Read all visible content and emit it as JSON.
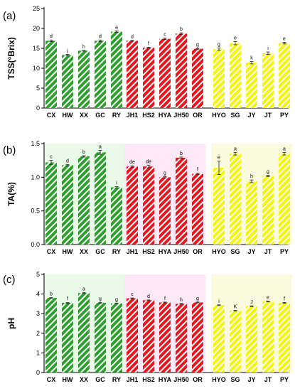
{
  "chart_data": [
    {
      "type": "bar",
      "panel": "(a)",
      "ylabel": "TSS(°Brix)",
      "ylim": [
        0,
        25
      ],
      "yticks": [
        0,
        5,
        10,
        15,
        20,
        25
      ],
      "categories": [
        "CX",
        "HW",
        "XX",
        "GC",
        "RY",
        "JH1",
        "HS2",
        "HYA",
        "JH50",
        "OR",
        "HYO",
        "SG",
        "JY",
        "JT",
        "PY"
      ],
      "groups": [
        {
          "color": "#2ca02c",
          "categories": [
            "CX",
            "HW",
            "XX",
            "GC",
            "RY"
          ]
        },
        {
          "color": "#e8161c",
          "categories": [
            "JH1",
            "HS2",
            "HYA",
            "JH50",
            "OR"
          ]
        },
        {
          "color": "#f5f50c",
          "categories": [
            "HYO",
            "SG",
            "JY",
            "JT",
            "PY"
          ]
        }
      ],
      "values": [
        16.9,
        13.3,
        14.4,
        16.9,
        19.2,
        16.9,
        15.2,
        17.4,
        18.7,
        14.9,
        14.8,
        16.3,
        11.4,
        13.8,
        16.3
      ],
      "errors": [
        0.2,
        0.2,
        0.1,
        0.2,
        0.2,
        0.1,
        0.1,
        0.2,
        0.2,
        0.1,
        0.3,
        0.4,
        0.3,
        0.3,
        0.2
      ],
      "letters": [
        "d",
        "j",
        "h",
        "d",
        "a",
        "d",
        "f",
        "c",
        "b",
        "g",
        "g",
        "e",
        "k",
        "i",
        "e"
      ]
    },
    {
      "type": "bar",
      "panel": "(b)",
      "ylabel": "TA(%)",
      "ylim": [
        0,
        1.5
      ],
      "yticks": [
        "0.0",
        "0.5",
        "1.0",
        "1.5"
      ],
      "categories": [
        "CX",
        "HW",
        "XX",
        "GC",
        "RY",
        "JH1",
        "HS2",
        "HYA",
        "JH50",
        "OR",
        "HYO",
        "SG",
        "JY",
        "JT",
        "PY"
      ],
      "groups": [
        {
          "color": "#2ca02c",
          "categories": [
            "CX",
            "HW",
            "XX",
            "GC",
            "RY"
          ]
        },
        {
          "color": "#e8161c",
          "categories": [
            "JH1",
            "HS2",
            "HYA",
            "JH50",
            "OR"
          ]
        },
        {
          "color": "#f5f50c",
          "categories": [
            "HYO",
            "SG",
            "JY",
            "JT",
            "PY"
          ]
        }
      ],
      "values": [
        1.22,
        1.18,
        1.31,
        1.37,
        0.85,
        1.16,
        1.16,
        1.0,
        1.29,
        1.05,
        1.14,
        1.35,
        0.94,
        1.02,
        1.35
      ],
      "errors": [
        0.03,
        0.01,
        0.01,
        0.03,
        0.01,
        0.01,
        0.02,
        0.01,
        0.01,
        0.01,
        0.1,
        0.02,
        0.02,
        0.01,
        0.02
      ],
      "letters": [
        "c",
        "d",
        "b",
        "a",
        "i",
        "de",
        "de",
        "g",
        "b",
        "f",
        "e",
        "a",
        "h",
        "g",
        "a"
      ]
    },
    {
      "type": "bar",
      "panel": "(c)",
      "ylabel": "pH",
      "ylim": [
        0,
        5
      ],
      "yticks": [
        0,
        1,
        2,
        3,
        4,
        5
      ],
      "categories": [
        "CX",
        "HW",
        "XX",
        "GC",
        "RY",
        "JH1",
        "HS2",
        "HYA",
        "JH50",
        "OR",
        "HYO",
        "SG",
        "JY",
        "JT",
        "PY"
      ],
      "groups": [
        {
          "color": "#2ca02c",
          "categories": [
            "CX",
            "HW",
            "XX",
            "GC",
            "RY"
          ]
        },
        {
          "color": "#e8161c",
          "categories": [
            "JH1",
            "HS2",
            "HYA",
            "JH50",
            "OR"
          ]
        },
        {
          "color": "#f5f50c",
          "categories": [
            "HYO",
            "SG",
            "JY",
            "JT",
            "PY"
          ]
        }
      ],
      "values": [
        3.8,
        3.55,
        4.05,
        3.55,
        3.52,
        3.78,
        3.68,
        3.57,
        3.5,
        3.57,
        3.43,
        3.15,
        3.38,
        3.62,
        3.55
      ],
      "errors": [
        0.02,
        0.02,
        0.02,
        0.02,
        0.02,
        0.02,
        0.02,
        0.02,
        0.02,
        0.02,
        0.02,
        0.02,
        0.02,
        0.02,
        0.02
      ],
      "letters": [
        "b",
        "f",
        "a",
        "g",
        "g",
        "c",
        "d",
        "f",
        "h",
        "g",
        "i",
        "K",
        "J",
        "e",
        "f"
      ]
    }
  ]
}
